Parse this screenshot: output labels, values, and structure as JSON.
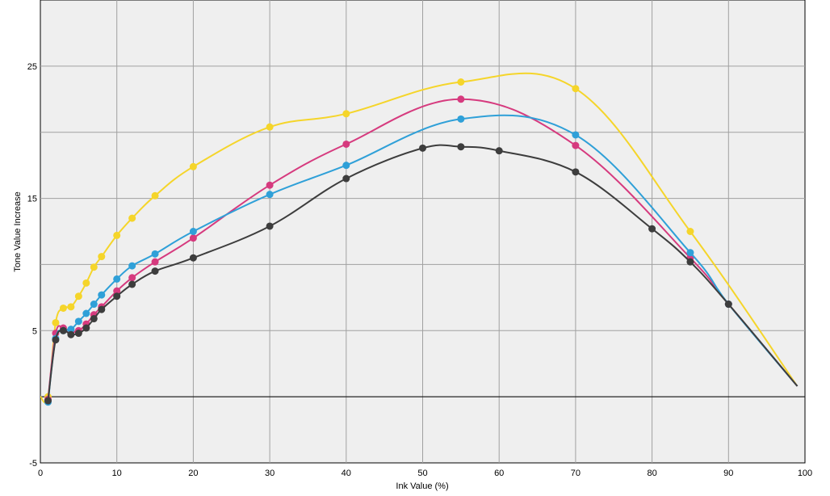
{
  "chart_data": {
    "type": "line",
    "xlabel": "Ink Value (%)",
    "ylabel": "Tone Value Increase",
    "xlim": [
      0,
      100
    ],
    "ylim": [
      -5,
      30
    ],
    "x_ticks": [
      0,
      10,
      20,
      30,
      40,
      50,
      60,
      70,
      80,
      90,
      100
    ],
    "y_ticks": [
      -5,
      5,
      15,
      25
    ],
    "grid": true,
    "background": "#efefef",
    "grid_color": "#a0a0a0",
    "zero_line": true,
    "series": [
      {
        "color": "#f5d52a",
        "x": [
          0,
          1,
          2,
          3,
          4,
          5,
          6,
          7,
          8,
          10,
          12,
          15,
          20,
          30,
          40,
          55,
          70,
          85,
          99
        ],
        "y": [
          0,
          0,
          5.6,
          6.7,
          6.8,
          7.6,
          8.6,
          9.8,
          10.6,
          12.2,
          13.5,
          15.2,
          17.4,
          20.4,
          21.4,
          23.8,
          23.3,
          12.5,
          0.8
        ]
      },
      {
        "color": "#d63a7e",
        "x": [
          1,
          2,
          3,
          4,
          5,
          6,
          7,
          8,
          10,
          12,
          15,
          20,
          30,
          40,
          55,
          70,
          85,
          90,
          99
        ],
        "y": [
          -0.2,
          4.8,
          5.2,
          4.9,
          5.0,
          5.5,
          6.2,
          6.8,
          8.0,
          9.0,
          10.2,
          12.0,
          16.0,
          19.1,
          22.5,
          19.0,
          10.5,
          7.0,
          0.8
        ]
      },
      {
        "color": "#2fa0d8",
        "x": [
          1,
          2,
          3,
          4,
          5,
          6,
          7,
          8,
          10,
          12,
          15,
          20,
          30,
          40,
          55,
          70,
          85,
          90,
          99
        ],
        "y": [
          -0.4,
          4.4,
          5.0,
          5.1,
          5.7,
          6.3,
          7.0,
          7.7,
          8.9,
          9.9,
          10.8,
          12.5,
          15.3,
          17.5,
          21.0,
          19.8,
          10.9,
          7.0,
          0.8
        ]
      },
      {
        "color": "#3d3d3d",
        "x": [
          1,
          2,
          3,
          4,
          5,
          6,
          7,
          8,
          10,
          12,
          15,
          20,
          30,
          40,
          50,
          55,
          60,
          70,
          80,
          85,
          90,
          99
        ],
        "y": [
          -0.3,
          4.3,
          5.0,
          4.7,
          4.8,
          5.2,
          5.9,
          6.6,
          7.6,
          8.5,
          9.5,
          10.5,
          12.9,
          16.5,
          18.8,
          18.9,
          18.6,
          17.0,
          12.7,
          10.2,
          7.0,
          0.8
        ]
      }
    ]
  }
}
